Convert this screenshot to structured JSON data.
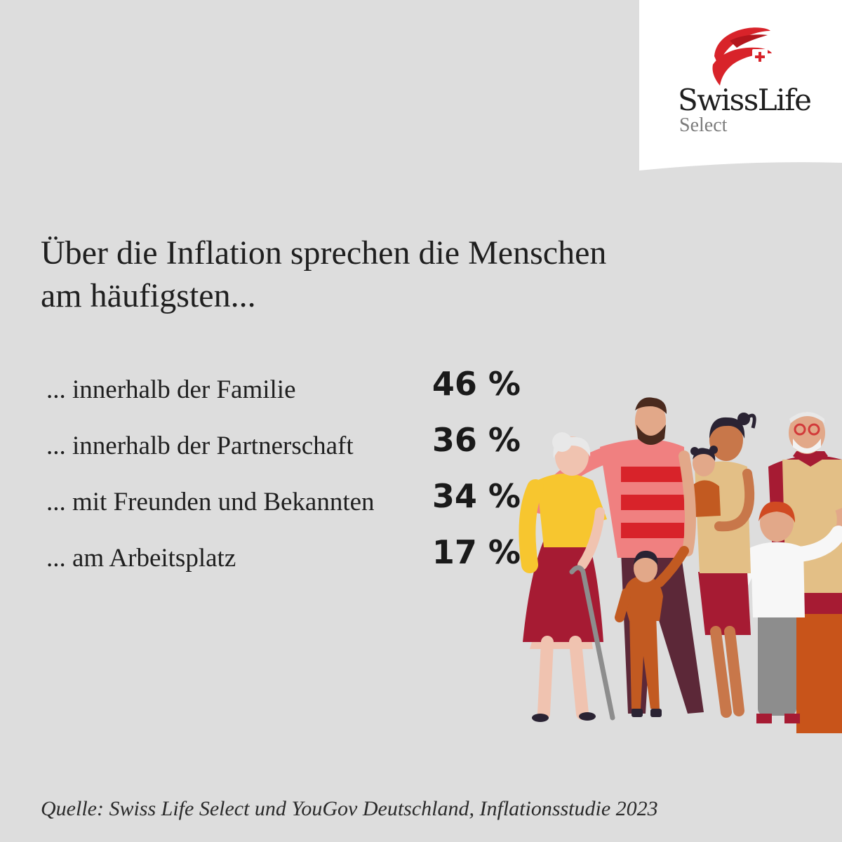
{
  "brand": {
    "name": "SwissLife",
    "sub": "Select",
    "colors": {
      "red": "#d8232a",
      "panel": "#ffffff",
      "background": "#dddddd"
    }
  },
  "headline": {
    "line1": "Über die Inflation sprechen die Menschen",
    "line2": "am häufigsten..."
  },
  "stats": [
    {
      "label": "... innerhalb der Familie",
      "value": "46 %"
    },
    {
      "label": "... innerhalb der Partnerschaft",
      "value": "36 %"
    },
    {
      "label": "... mit Freunden und Bekannten",
      "value": "34 %"
    },
    {
      "label": "... am Arbeitsplatz",
      "value": "17 %"
    }
  ],
  "illustration": {
    "icon": "family-group-illustration"
  },
  "source": "Quelle: Swiss Life Select und YouGov Deutschland, Inflationsstudie 2023"
}
